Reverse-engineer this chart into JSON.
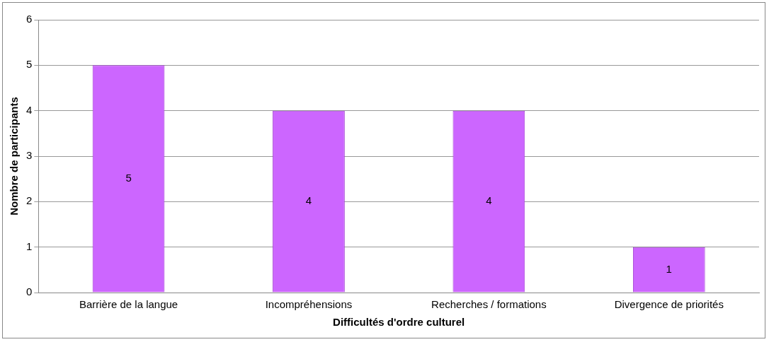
{
  "chart_data": {
    "type": "bar",
    "xlabel": "Difficultés d'ordre culturel",
    "ylabel": "Nombre de participants",
    "categories": [
      "Barrière de la langue",
      "Incompréhensions",
      "Recherches / formations",
      "Divergence de priorités"
    ],
    "values": [
      5,
      4,
      4,
      1
    ],
    "color": "#cc66ff",
    "ylim": [
      0,
      6
    ],
    "yticks": [
      0,
      1,
      2,
      3,
      4,
      5,
      6
    ],
    "grid": "y",
    "data_labels": true,
    "legend": false
  }
}
